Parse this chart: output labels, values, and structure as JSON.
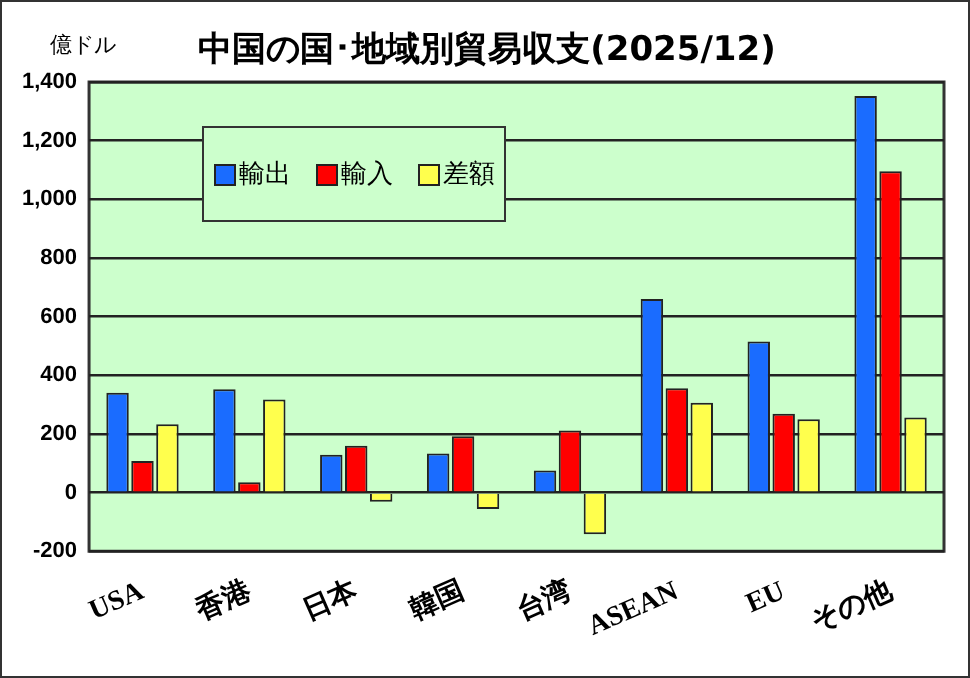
{
  "chart_data": {
    "type": "bar",
    "title": "中国の国･地域別貿易収支(2025/12)",
    "ylabel": "億ドル",
    "categories": [
      "USA",
      "香港",
      "日本",
      "韓国",
      "台湾",
      "ASEAN",
      "EU",
      "その他"
    ],
    "series": [
      {
        "name": "輸出",
        "color": "#1a6cff",
        "values": [
          340,
          352,
          129,
          133,
          75,
          660,
          515,
          1352
        ]
      },
      {
        "name": "輸入",
        "color": "#ff0000",
        "values": [
          108,
          35,
          160,
          192,
          212,
          356,
          269,
          1096
        ]
      },
      {
        "name": "差額",
        "color": "#ffff4d",
        "values": [
          233,
          317,
          -31,
          -56,
          -142,
          306,
          250,
          256
        ]
      }
    ],
    "ylim": [
      -200,
      1400
    ],
    "yticks": [
      -200,
      0,
      200,
      400,
      600,
      800,
      {
        "value": 1000,
        "label": "1,000"
      },
      {
        "value": 1200,
        "label": "1,200"
      },
      {
        "value": 1400,
        "label": "1,400"
      }
    ],
    "grid": "y",
    "legend": "top left"
  }
}
